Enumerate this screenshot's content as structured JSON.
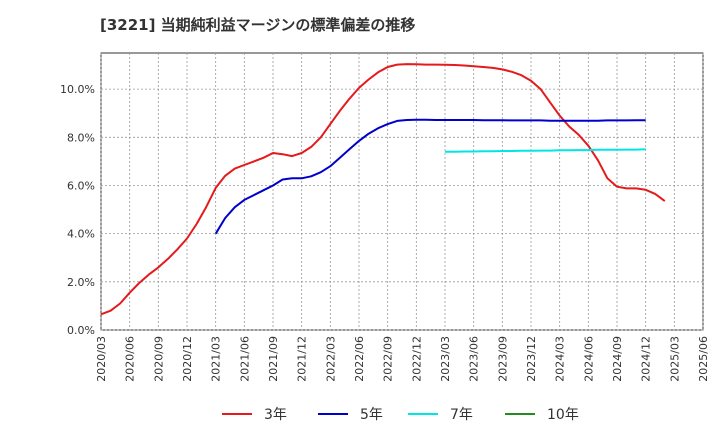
{
  "title": "[3221]  当期純利益マージンの標準偏差の推移",
  "chart_data": {
    "type": "line",
    "y_range": [
      0,
      11.5
    ],
    "y_ticks": [
      {
        "value": 0,
        "label": "0.0%"
      },
      {
        "value": 2,
        "label": "2.0%"
      },
      {
        "value": 4,
        "label": "4.0%"
      },
      {
        "value": 6,
        "label": "6.0%"
      },
      {
        "value": 8,
        "label": "8.0%"
      },
      {
        "value": 10,
        "label": "10.0%"
      }
    ],
    "x_ticks": [
      "2020/03",
      "2020/06",
      "2020/09",
      "2020/12",
      "2021/03",
      "2021/06",
      "2021/09",
      "2021/12",
      "2022/03",
      "2022/06",
      "2022/09",
      "2022/12",
      "2023/03",
      "2023/06",
      "2023/09",
      "2023/12",
      "2024/03",
      "2024/06",
      "2024/09",
      "2024/12",
      "2025/03",
      "2025/06"
    ],
    "grid": true,
    "legend_position": "bottom",
    "series": [
      {
        "name": "3年",
        "color": "#e41a1c",
        "start": "2020/03",
        "values": [
          0.65,
          0.8,
          1.1,
          1.55,
          1.95,
          2.3,
          2.6,
          2.95,
          3.35,
          3.8,
          4.4,
          5.1,
          5.9,
          6.4,
          6.7,
          6.85,
          7.0,
          7.15,
          7.35,
          7.3,
          7.22,
          7.35,
          7.6,
          8.0,
          8.55,
          9.1,
          9.6,
          10.05,
          10.4,
          10.7,
          10.92,
          11.02,
          11.04,
          11.03,
          11.02,
          11.02,
          11.01,
          11.0,
          10.98,
          10.95,
          10.92,
          10.88,
          10.82,
          10.72,
          10.58,
          10.35,
          10.0,
          9.45,
          8.9,
          8.45,
          8.1,
          7.65,
          7.05,
          6.3,
          5.95,
          5.88,
          5.88,
          5.82,
          5.65,
          5.35
        ]
      },
      {
        "name": "5年",
        "color": "#0000cc",
        "start": "2021/03",
        "values": [
          4.0,
          4.65,
          5.1,
          5.4,
          5.6,
          5.8,
          6.0,
          6.25,
          6.3,
          6.3,
          6.38,
          6.55,
          6.8,
          7.15,
          7.5,
          7.85,
          8.15,
          8.38,
          8.55,
          8.68,
          8.72,
          8.73,
          8.73,
          8.72,
          8.72,
          8.72,
          8.72,
          8.72,
          8.71,
          8.71,
          8.71,
          8.7,
          8.7,
          8.7,
          8.7,
          8.69,
          8.69,
          8.69,
          8.69,
          8.69,
          8.69,
          8.7,
          8.7,
          8.7,
          8.71,
          8.71
        ]
      },
      {
        "name": "7年",
        "color": "#00e5e5",
        "start": "2023/03",
        "values": [
          7.4,
          7.4,
          7.41,
          7.41,
          7.42,
          7.42,
          7.43,
          7.43,
          7.44,
          7.44,
          7.45,
          7.45,
          7.46,
          7.46,
          7.47,
          7.47,
          7.48,
          7.48,
          7.48,
          7.49,
          7.49,
          7.5
        ]
      },
      {
        "name": "10年",
        "color": "#228b22",
        "start": "",
        "values": []
      }
    ]
  }
}
